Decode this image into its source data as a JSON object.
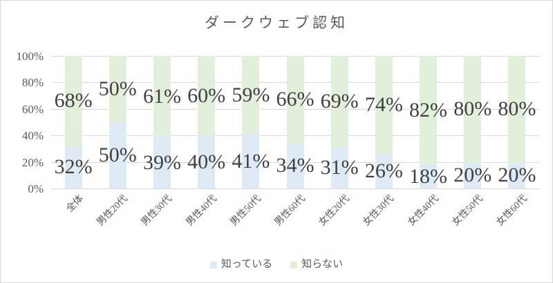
{
  "chart_data": {
    "type": "bar",
    "stacked": true,
    "title": "ダークウェブ認知",
    "categories": [
      "全体",
      "男性20代",
      "男性30代",
      "男性40代",
      "男性50代",
      "男性60代",
      "女性20代",
      "女性30代",
      "女性40代",
      "女性50代",
      "女性60代"
    ],
    "series": [
      {
        "name": "知っている",
        "color": "#DEEBF7",
        "values": [
          32,
          50,
          39,
          40,
          41,
          34,
          31,
          26,
          18,
          20,
          20
        ]
      },
      {
        "name": "知らない",
        "color": "#E2EFDA",
        "values": [
          68,
          50,
          61,
          60,
          59,
          66,
          69,
          74,
          82,
          80,
          80
        ]
      }
    ],
    "value_suffix": "%",
    "y_ticks": [
      "0%",
      "20%",
      "40%",
      "60%",
      "80%",
      "100%"
    ],
    "ylim": [
      0,
      100
    ],
    "grid": true,
    "legend_position": "bottom"
  },
  "colors": {
    "grid": "#D9D9D9",
    "frame_border": "#D6D6D6",
    "tick_text": "#595959",
    "title_text": "#595959",
    "value_label_text": "#404040",
    "background": "#FFFFFF"
  }
}
